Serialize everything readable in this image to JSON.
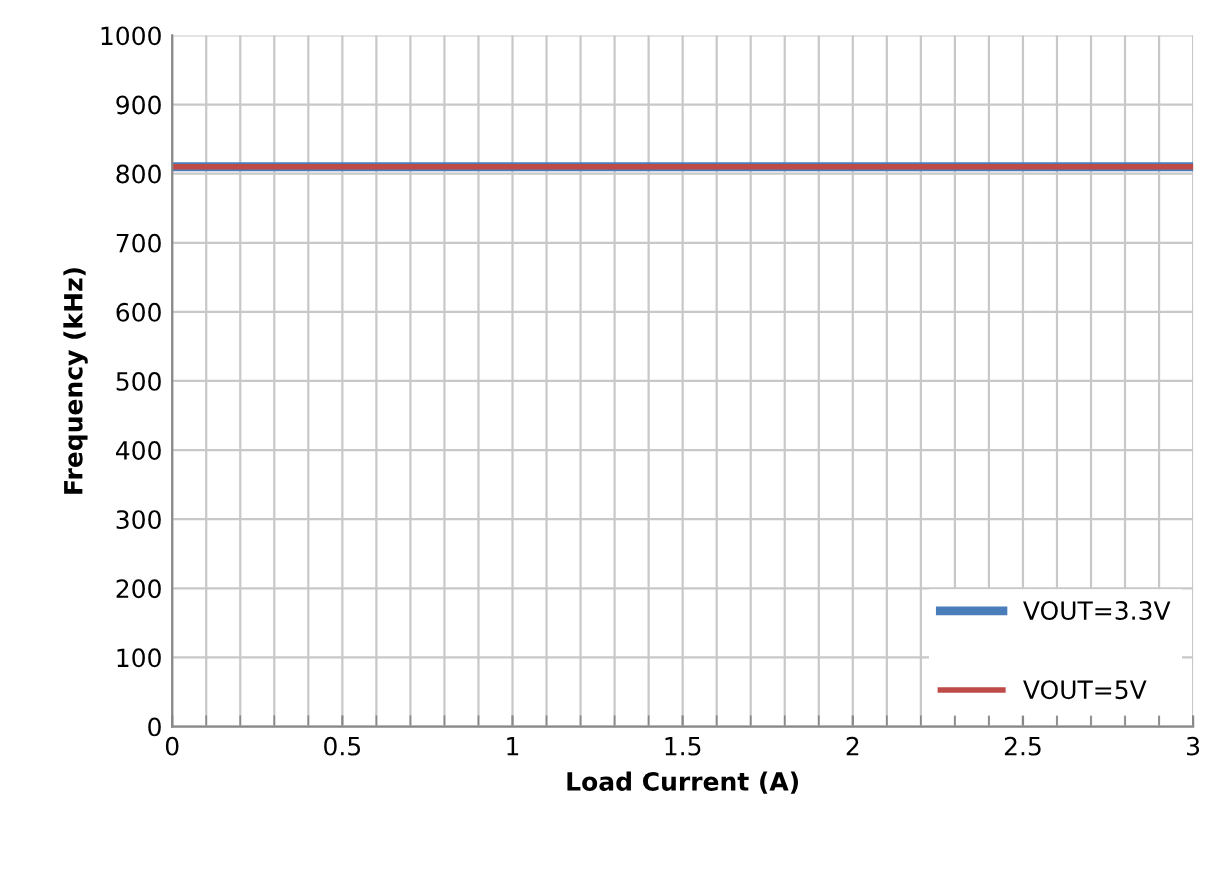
{
  "chart_data": {
    "type": "line",
    "xlabel": "Load Current (A)",
    "ylabel": "Frequency (kHz)",
    "x": [
      0,
      3
    ],
    "series": [
      {
        "name": "VOUT=3.3V",
        "color": "#4a7ebb",
        "values": [
          810,
          810
        ]
      },
      {
        "name": "VOUT=5V",
        "color": "#be4b48",
        "values": [
          810,
          810
        ]
      }
    ],
    "xlim": [
      0,
      3
    ],
    "xticks": [
      0,
      0.5,
      1,
      1.5,
      2,
      2.5,
      3
    ],
    "ylim": [
      0,
      1000
    ],
    "yticks": [
      0,
      100,
      200,
      300,
      400,
      500,
      600,
      700,
      800,
      900,
      1000
    ],
    "grid": true,
    "legend": "bottom right",
    "marker": "none",
    "line_style": "solid"
  }
}
